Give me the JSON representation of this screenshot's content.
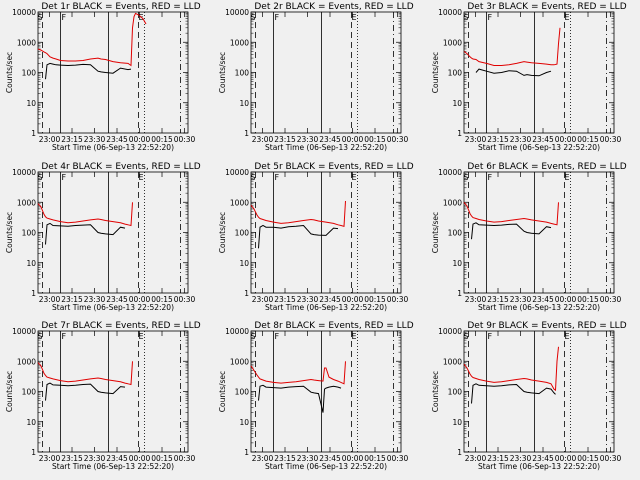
{
  "chart_data": {
    "type": "line",
    "y_scale": "log",
    "ylim": [
      1,
      10000
    ],
    "xlim_label": "22:52:20 to 00:30",
    "yticks": [
      "1",
      "10",
      "100",
      "1000",
      "10000"
    ],
    "xticks": [
      "23:00",
      "23:15",
      "23:30",
      "23:45",
      "00:00",
      "00:15",
      "00:30"
    ],
    "ylabel": "Counts/sec",
    "xlabel": "Start Time (06-Sep-13 22:52:20)",
    "colors": {
      "events": "#000000",
      "lld": "#e00000"
    },
    "event_markers": [
      "S",
      "F",
      "E"
    ],
    "panels": [
      {
        "title": "Det 1r BLACK = Events, RED = LLD",
        "x": [
          0,
          2,
          4,
          5,
          6,
          8,
          10,
          12,
          15,
          20,
          25,
          30,
          35,
          40,
          42,
          45,
          50,
          55,
          60,
          62,
          63,
          64,
          65,
          67,
          70,
          72
        ],
        "events": [
          0,
          0,
          0,
          60,
          180,
          200,
          190,
          180,
          175,
          170,
          175,
          185,
          180,
          110,
          105,
          100,
          95,
          140,
          125,
          130,
          0,
          0,
          0,
          0,
          0,
          0
        ],
        "lld": [
          600,
          550,
          480,
          450,
          420,
          330,
          300,
          280,
          250,
          240,
          240,
          250,
          280,
          300,
          280,
          270,
          230,
          210,
          200,
          170,
          3000,
          7000,
          9000,
          8000,
          6000,
          4000
        ]
      },
      {
        "title": "Det 2r BLACK = Events, RED = LLD",
        "x": [],
        "events": [],
        "lld": []
      },
      {
        "title": "Det 3r BLACK = Events, RED = LLD",
        "x": [
          0,
          2,
          4,
          5,
          6,
          8,
          10,
          15,
          20,
          25,
          30,
          35,
          40,
          42,
          45,
          50,
          55,
          58,
          60,
          62,
          63,
          64
        ],
        "events": [
          0,
          0,
          0,
          0,
          0,
          100,
          130,
          110,
          95,
          100,
          115,
          110,
          80,
          85,
          80,
          78,
          100,
          110,
          0,
          0,
          0,
          0
        ],
        "lld": [
          500,
          420,
          330,
          300,
          280,
          270,
          230,
          200,
          170,
          170,
          180,
          200,
          230,
          220,
          210,
          200,
          190,
          180,
          180,
          190,
          900,
          3000
        ]
      },
      {
        "title": "Det 4r BLACK = Events, RED = LLD",
        "x": [
          0,
          2,
          4,
          5,
          6,
          8,
          10,
          15,
          20,
          25,
          30,
          35,
          40,
          42,
          45,
          50,
          55,
          58,
          60,
          62,
          63
        ],
        "events": [
          0,
          0,
          0,
          40,
          180,
          200,
          170,
          165,
          160,
          170,
          175,
          180,
          100,
          95,
          90,
          85,
          150,
          140,
          0,
          0,
          0
        ],
        "lld": [
          900,
          700,
          400,
          330,
          300,
          280,
          260,
          230,
          210,
          220,
          240,
          260,
          280,
          270,
          250,
          230,
          210,
          190,
          180,
          170,
          1000
        ]
      },
      {
        "title": "Det 5r BLACK = Events, RED = LLD",
        "x": [
          0,
          2,
          4,
          5,
          6,
          8,
          10,
          15,
          20,
          25,
          30,
          35,
          40,
          42,
          45,
          50,
          55,
          58,
          60,
          62,
          63
        ],
        "events": [
          0,
          0,
          0,
          30,
          150,
          170,
          150,
          150,
          140,
          155,
          160,
          170,
          90,
          85,
          82,
          80,
          140,
          135,
          0,
          0,
          0
        ],
        "lld": [
          800,
          600,
          380,
          320,
          290,
          270,
          250,
          220,
          200,
          210,
          230,
          250,
          270,
          260,
          240,
          220,
          200,
          180,
          170,
          160,
          1100
        ]
      },
      {
        "title": "Det 6r BLACK = Events, RED = LLD",
        "x": [
          0,
          2,
          4,
          5,
          6,
          8,
          10,
          15,
          20,
          25,
          30,
          35,
          40,
          42,
          45,
          50,
          55,
          58,
          60,
          62,
          63
        ],
        "events": [
          0,
          0,
          0,
          60,
          190,
          210,
          180,
          175,
          170,
          175,
          185,
          190,
          110,
          100,
          95,
          90,
          155,
          145,
          0,
          0,
          0
        ],
        "lld": [
          1000,
          750,
          420,
          350,
          310,
          290,
          270,
          240,
          220,
          230,
          250,
          270,
          290,
          280,
          260,
          240,
          220,
          200,
          190,
          180,
          1000
        ]
      },
      {
        "title": "Det 7r BLACK = Events, RED = LLD",
        "x": [
          0,
          2,
          4,
          5,
          6,
          8,
          10,
          15,
          20,
          25,
          30,
          35,
          40,
          42,
          45,
          50,
          55,
          58,
          60,
          62,
          63
        ],
        "events": [
          0,
          0,
          0,
          50,
          170,
          190,
          165,
          160,
          155,
          160,
          170,
          175,
          100,
          95,
          90,
          85,
          145,
          140,
          0,
          0,
          0
        ],
        "lld": [
          900,
          700,
          400,
          340,
          300,
          280,
          260,
          230,
          210,
          220,
          240,
          260,
          280,
          270,
          250,
          230,
          210,
          190,
          180,
          170,
          1000
        ]
      },
      {
        "title": "Det 8r BLACK = Events, RED = LLD",
        "x": [
          0,
          2,
          4,
          5,
          6,
          8,
          10,
          15,
          20,
          25,
          30,
          35,
          40,
          42,
          45,
          48,
          49,
          50,
          52,
          55,
          58,
          60,
          62,
          63
        ],
        "events": [
          0,
          0,
          0,
          50,
          150,
          160,
          140,
          135,
          130,
          140,
          145,
          150,
          95,
          90,
          85,
          20,
          120,
          130,
          140,
          150,
          140,
          130,
          0,
          0
        ],
        "lld": [
          700,
          500,
          350,
          300,
          260,
          240,
          220,
          200,
          190,
          200,
          210,
          230,
          250,
          240,
          230,
          220,
          600,
          600,
          300,
          250,
          220,
          200,
          180,
          1000
        ]
      },
      {
        "title": "Det 9r BLACK = Events, RED = LLD",
        "x": [
          0,
          2,
          4,
          5,
          6,
          8,
          10,
          15,
          20,
          25,
          30,
          35,
          40,
          42,
          45,
          50,
          55,
          58,
          60,
          61,
          62,
          63
        ],
        "events": [
          0,
          0,
          0,
          40,
          160,
          180,
          160,
          155,
          150,
          155,
          165,
          170,
          100,
          95,
          90,
          85,
          130,
          120,
          90,
          80,
          0,
          0
        ],
        "lld": [
          800,
          600,
          380,
          320,
          290,
          270,
          250,
          220,
          200,
          210,
          230,
          250,
          270,
          260,
          240,
          220,
          200,
          180,
          120,
          110,
          1000,
          3000
        ]
      }
    ]
  }
}
